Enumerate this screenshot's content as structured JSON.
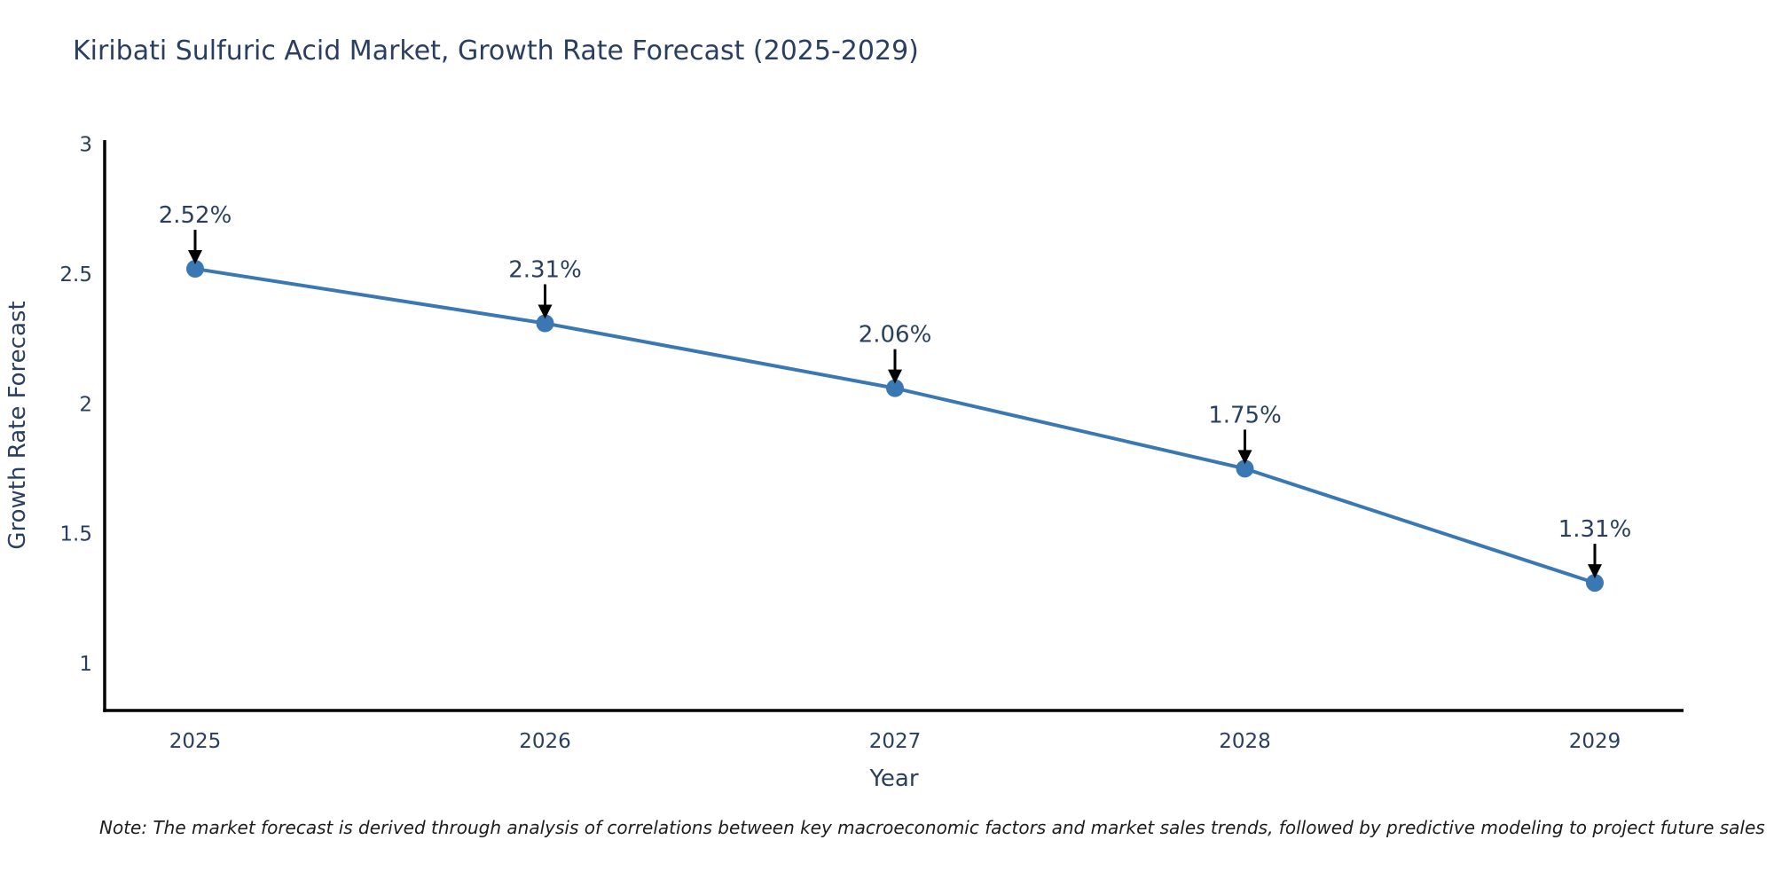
{
  "chart_data": {
    "type": "line",
    "title": "Kiribati Sulfuric Acid Market, Growth Rate Forecast (2025-2029)",
    "xlabel": "Year",
    "ylabel": "Growth Rate Forecast",
    "x": [
      2025,
      2026,
      2027,
      2028,
      2029
    ],
    "x_tick_labels": [
      "2025",
      "2026",
      "2027",
      "2028",
      "2029"
    ],
    "series": [
      {
        "name": "Growth Rate Forecast",
        "values": [
          2.52,
          2.31,
          2.06,
          1.75,
          1.31
        ]
      }
    ],
    "point_labels": [
      "2.52%",
      "2.31%",
      "2.06%",
      "1.75%",
      "1.31%"
    ],
    "y_ticks": [
      3,
      2.5,
      2,
      1.5,
      1
    ],
    "y_tick_labels": [
      "3",
      "2.5",
      "2",
      "1.5",
      "1"
    ],
    "ylim": [
      0.82,
      3.02
    ],
    "grid": false,
    "legend": false,
    "line_color": "#3a78b4",
    "marker_color": "#3a78b4",
    "axis_color": "#000000",
    "tick_color": "#2a3f5f",
    "annotation_color": "#2a3f5f",
    "arrow_color": "#000000"
  },
  "note": {
    "text": "Note: The market forecast is derived through analysis of correlations between key macroeconomic factors and market sales trends, followed by predictive modeling to project future sales"
  }
}
